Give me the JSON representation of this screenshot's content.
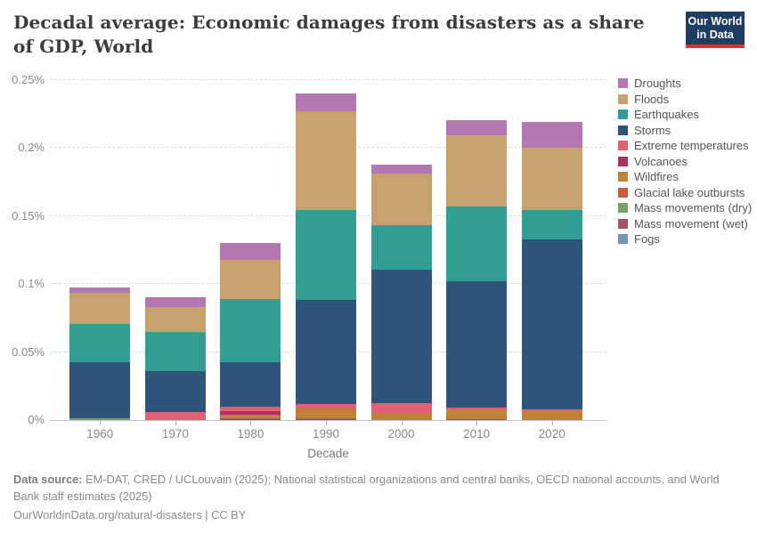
{
  "header": {
    "title": "Decadal average: Economic damages from disasters as a share of GDP, World",
    "logo_line1": "Our World",
    "logo_line2": "in Data",
    "logo_bg": "#1d3d63",
    "logo_accent": "#dc3424"
  },
  "chart_data": {
    "type": "bar",
    "stacked": true,
    "title": "Decadal average: Economic damages from disasters as a share of GDP, World",
    "xlabel": "Decade",
    "ylabel": "",
    "ylim": [
      0,
      0.25
    ],
    "grid": true,
    "legend_position": "right",
    "categories": [
      "1960",
      "1970",
      "1980",
      "1990",
      "2000",
      "2010",
      "2020"
    ],
    "y_ticks": [
      {
        "value": 0,
        "label": "0%"
      },
      {
        "value": 0.05,
        "label": "0.05%"
      },
      {
        "value": 0.1,
        "label": "0.1%"
      },
      {
        "value": 0.15,
        "label": "0.15%"
      },
      {
        "value": 0.2,
        "label": "0.2%"
      },
      {
        "value": 0.25,
        "label": "0.25%"
      }
    ],
    "unit": "% of GDP",
    "series": [
      {
        "name": "Droughts",
        "color": "#b377b1",
        "values": [
          0.0037,
          0.007,
          0.0128,
          0.0131,
          0.0068,
          0.0113,
          0.0185
        ]
      },
      {
        "name": "Floods",
        "color": "#c9a16e",
        "values": [
          0.0229,
          0.0182,
          0.0287,
          0.0727,
          0.0382,
          0.0524,
          0.0459
        ]
      },
      {
        "name": "Earthquakes",
        "color": "#309e92",
        "values": [
          0.0284,
          0.0288,
          0.0463,
          0.066,
          0.0328,
          0.055,
          0.0216
        ]
      },
      {
        "name": "Storms",
        "color": "#2f547a",
        "values": [
          0.0408,
          0.0305,
          0.0332,
          0.0771,
          0.0977,
          0.0929,
          0.1252
        ]
      },
      {
        "name": "Extreme temperatures",
        "color": "#e06272",
        "values": [
          0,
          0.0057,
          0.0033,
          0.0033,
          0.0077,
          0.0013,
          0.0013
        ]
      },
      {
        "name": "Volcanoes",
        "color": "#ad2e63",
        "values": [
          0,
          0,
          0.0024,
          0,
          0,
          0,
          0
        ]
      },
      {
        "name": "Wildfires",
        "color": "#c08138",
        "values": [
          0,
          0,
          0.0028,
          0.0072,
          0.005,
          0.0069,
          0.0066
        ]
      },
      {
        "name": "Glacial lake outbursts",
        "color": "#cf5b3f",
        "values": [
          0,
          0,
          0,
          0,
          0,
          0,
          0
        ]
      },
      {
        "name": "Mass movements (dry)",
        "color": "#77a264",
        "values": [
          0.0016,
          0,
          0,
          0,
          0,
          0,
          0
        ]
      },
      {
        "name": "Mass movement (wet)",
        "color": "#a1565e",
        "values": [
          0,
          0,
          0.0011,
          0.0011,
          0,
          0.0007,
          0
        ]
      },
      {
        "name": "Fogs",
        "color": "#7291bb",
        "values": [
          0,
          0,
          0,
          0,
          0,
          0,
          0
        ]
      }
    ],
    "totals": [
      0.0974,
      0.0902,
      0.1306,
      0.2405,
      0.1882,
      0.2205,
      0.2191
    ]
  },
  "footer": {
    "source_label": "Data source:",
    "source_text": " EM-DAT, CRED / UCLouvain (2025); National statistical organizations and central banks, OECD national accounts, and World Bank staff estimates (2025)",
    "credit_line": "OurWorldinData.org/natural-disasters | CC BY"
  }
}
